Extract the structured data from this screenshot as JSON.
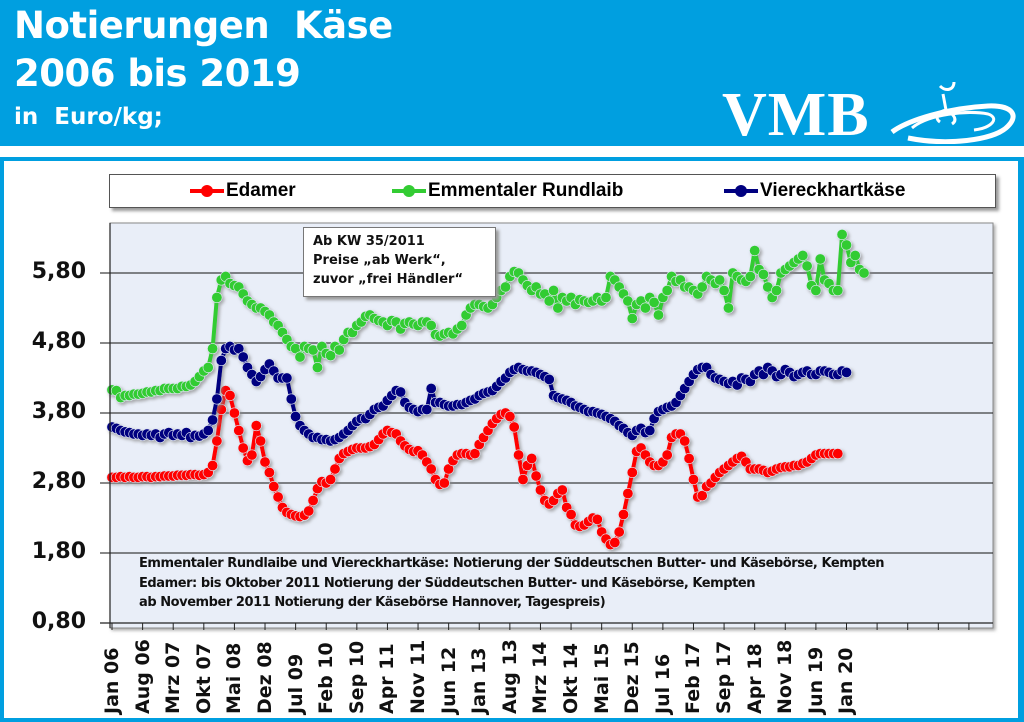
{
  "header": {
    "title_line1": "Notierungen  Käse",
    "title_line2": "2006 bis 2019",
    "subtitle": "in  Euro/kg;",
    "logo_text": "VMB",
    "background_color": "#009fe0"
  },
  "annotation": {
    "line1": "Ab KW 35/2011",
    "line2": "Preise „ab Werk“,",
    "line3": "zuvor „frei Händler“"
  },
  "source_note": {
    "line1": "Emmentaler Rundlaibe und Viereckhartkäse: Notierung der Süddeutschen Butter-  und Käsebörse, Kempten",
    "line2": "Edamer: bis Oktober 2011 Notierung der Süddeutschen Butter- und Käsebörse, Kempten",
    "line3": "ab November 2011 Notierung der Käsebörse Hannover, Tagespreis)"
  },
  "chart_data": {
    "type": "line",
    "title": "Notierungen Käse 2006 bis 2019",
    "ylabel": "Euro/kg",
    "xlabel": "",
    "ylim": [
      0.8,
      6.6
    ],
    "yticks": [
      5.8,
      4.8,
      3.8,
      2.8,
      1.8,
      0.8
    ],
    "ytick_labels": [
      "5,80",
      "4,80",
      "3,80",
      "2,80",
      "1,80",
      "0,80"
    ],
    "x_start": "Jan 06",
    "x_step": "1 month",
    "xtick_every_months": 7,
    "xtick_labels": [
      "Jan 06",
      "Aug 06",
      "Mrz 07",
      "Okt 07",
      "Mai 08",
      "Dez 08",
      "Jul 09",
      "Feb 10",
      "Sep 10",
      "Apr 11",
      "Nov 11",
      "Jun 12",
      "Jan 13",
      "Aug 13",
      "Mrz 14",
      "Okt 14",
      "Mai 15",
      "Dez 15",
      "Jul 16",
      "Feb 17",
      "Sep 17",
      "Apr 18",
      "Nov 18",
      "Jun 19",
      "Jan 20"
    ],
    "grid": true,
    "legend_position": "top",
    "series": [
      {
        "name": "Edamer",
        "color": "#ff0000",
        "values": [
          2.88,
          2.88,
          2.89,
          2.88,
          2.89,
          2.88,
          2.88,
          2.89,
          2.89,
          2.88,
          2.89,
          2.89,
          2.9,
          2.9,
          2.9,
          2.91,
          2.91,
          2.91,
          2.92,
          2.92,
          2.91,
          2.92,
          2.95,
          3.05,
          3.4,
          3.85,
          4.12,
          4.05,
          3.8,
          3.55,
          3.3,
          3.12,
          3.2,
          3.62,
          3.4,
          3.1,
          2.95,
          2.75,
          2.6,
          2.45,
          2.38,
          2.35,
          2.33,
          2.32,
          2.34,
          2.4,
          2.55,
          2.72,
          2.82,
          2.8,
          2.85,
          3.0,
          3.15,
          3.22,
          3.25,
          3.28,
          3.3,
          3.3,
          3.3,
          3.32,
          3.35,
          3.42,
          3.5,
          3.55,
          3.52,
          3.5,
          3.4,
          3.33,
          3.28,
          3.25,
          3.26,
          3.2,
          3.1,
          3.0,
          2.85,
          2.78,
          2.8,
          3.0,
          3.12,
          3.2,
          3.22,
          3.22,
          3.2,
          3.22,
          3.35,
          3.45,
          3.55,
          3.65,
          3.72,
          3.78,
          3.8,
          3.75,
          3.6,
          3.2,
          2.85,
          3.05,
          3.15,
          2.9,
          2.7,
          2.55,
          2.5,
          2.55,
          2.65,
          2.7,
          2.45,
          2.35,
          2.2,
          2.18,
          2.2,
          2.25,
          2.3,
          2.28,
          2.1,
          2.0,
          1.92,
          1.95,
          2.1,
          2.35,
          2.65,
          2.95,
          3.25,
          3.3,
          3.2,
          3.1,
          3.05,
          3.05,
          3.1,
          3.2,
          3.45,
          3.5,
          3.5,
          3.4,
          3.15,
          2.85,
          2.6,
          2.62,
          2.75,
          2.8,
          2.88,
          2.95,
          3.0,
          3.05,
          3.1,
          3.15,
          3.18,
          3.1,
          3.0,
          3.0,
          3.0,
          2.98,
          2.95,
          2.97,
          3.0,
          3.02,
          3.03,
          3.03,
          3.05,
          3.05,
          3.08,
          3.1,
          3.15,
          3.2,
          3.22,
          3.22,
          3.22,
          3.22,
          3.22
        ],
        "marker": "circle"
      },
      {
        "name": "Emmentaler Rundlaib",
        "color": "#33cc33",
        "values": [
          4.13,
          4.12,
          4.02,
          4.05,
          4.05,
          4.07,
          4.07,
          4.08,
          4.1,
          4.1,
          4.12,
          4.12,
          4.15,
          4.15,
          4.15,
          4.15,
          4.18,
          4.18,
          4.2,
          4.25,
          4.32,
          4.4,
          4.45,
          4.72,
          5.45,
          5.7,
          5.75,
          5.65,
          5.62,
          5.6,
          5.5,
          5.4,
          5.35,
          5.3,
          5.3,
          5.25,
          5.2,
          5.1,
          5.05,
          4.95,
          4.85,
          4.75,
          4.72,
          4.6,
          4.75,
          4.72,
          4.7,
          4.45,
          4.75,
          4.65,
          4.62,
          4.75,
          4.7,
          4.85,
          4.95,
          4.95,
          5.05,
          5.1,
          5.18,
          5.2,
          5.15,
          5.12,
          5.1,
          5.05,
          5.12,
          5.1,
          5.0,
          5.08,
          5.1,
          5.07,
          5.05,
          5.1,
          5.1,
          5.05,
          4.92,
          4.9,
          4.93,
          4.95,
          4.93,
          5.0,
          5.05,
          5.2,
          5.3,
          5.35,
          5.35,
          5.32,
          5.3,
          5.35,
          5.45,
          5.55,
          5.6,
          5.75,
          5.82,
          5.8,
          5.7,
          5.62,
          5.55,
          5.6,
          5.5,
          5.5,
          5.4,
          5.55,
          5.3,
          5.45,
          5.4,
          5.45,
          5.35,
          5.42,
          5.4,
          5.38,
          5.4,
          5.45,
          5.4,
          5.45,
          5.75,
          5.7,
          5.6,
          5.5,
          5.4,
          5.15,
          5.35,
          5.4,
          5.3,
          5.45,
          5.38,
          5.2,
          5.45,
          5.55,
          5.75,
          5.68,
          5.7,
          5.6,
          5.6,
          5.55,
          5.5,
          5.6,
          5.75,
          5.7,
          5.65,
          5.7,
          5.55,
          5.3,
          5.8,
          5.75,
          5.7,
          5.68,
          5.75,
          6.12,
          5.85,
          5.78,
          5.6,
          5.45,
          5.55,
          5.8,
          5.85,
          5.9,
          5.95,
          6.0,
          6.05,
          5.9,
          5.62,
          5.55,
          6.0,
          5.7,
          5.65,
          5.55,
          5.55,
          6.35,
          6.2,
          5.95,
          6.05,
          5.85,
          5.8
        ],
        "marker": "circle"
      },
      {
        "name": "Viereckhartkäse",
        "color": "#000080",
        "values": [
          3.6,
          3.58,
          3.55,
          3.53,
          3.52,
          3.5,
          3.5,
          3.48,
          3.5,
          3.48,
          3.5,
          3.45,
          3.5,
          3.52,
          3.48,
          3.5,
          3.48,
          3.52,
          3.45,
          3.48,
          3.47,
          3.5,
          3.55,
          3.7,
          4.0,
          4.55,
          4.72,
          4.75,
          4.7,
          4.72,
          4.6,
          4.45,
          4.35,
          4.25,
          4.32,
          4.42,
          4.5,
          4.4,
          4.3,
          4.3,
          4.3,
          4.0,
          3.75,
          3.62,
          3.55,
          3.5,
          3.45,
          3.45,
          3.42,
          3.42,
          3.4,
          3.42,
          3.45,
          3.5,
          3.55,
          3.62,
          3.68,
          3.72,
          3.72,
          3.78,
          3.85,
          3.88,
          3.9,
          3.98,
          4.05,
          4.12,
          4.1,
          3.95,
          3.88,
          3.85,
          3.82,
          3.85,
          3.85,
          4.15,
          3.95,
          3.95,
          3.92,
          3.9,
          3.9,
          3.92,
          3.92,
          3.95,
          3.98,
          4.0,
          4.05,
          4.08,
          4.1,
          4.12,
          4.18,
          4.25,
          4.3,
          4.38,
          4.42,
          4.45,
          4.42,
          4.4,
          4.4,
          4.38,
          4.35,
          4.32,
          4.28,
          4.05,
          4.02,
          4.0,
          3.98,
          3.95,
          3.9,
          3.88,
          3.85,
          3.82,
          3.82,
          3.8,
          3.78,
          3.75,
          3.72,
          3.68,
          3.62,
          3.58,
          3.52,
          3.48,
          3.55,
          3.58,
          3.52,
          3.55,
          3.72,
          3.82,
          3.85,
          3.88,
          3.9,
          3.95,
          4.05,
          4.15,
          4.25,
          4.35,
          4.42,
          4.45,
          4.45,
          4.35,
          4.3,
          4.28,
          4.25,
          4.22,
          4.25,
          4.2,
          4.3,
          4.28,
          4.25,
          4.35,
          4.4,
          4.35,
          4.45,
          4.4,
          4.32,
          4.35,
          4.42,
          4.38,
          4.32,
          4.35,
          4.38,
          4.4,
          4.35,
          4.35,
          4.4,
          4.4,
          4.38,
          4.35,
          4.35,
          4.4,
          4.38
        ],
        "marker": "circle"
      }
    ]
  }
}
